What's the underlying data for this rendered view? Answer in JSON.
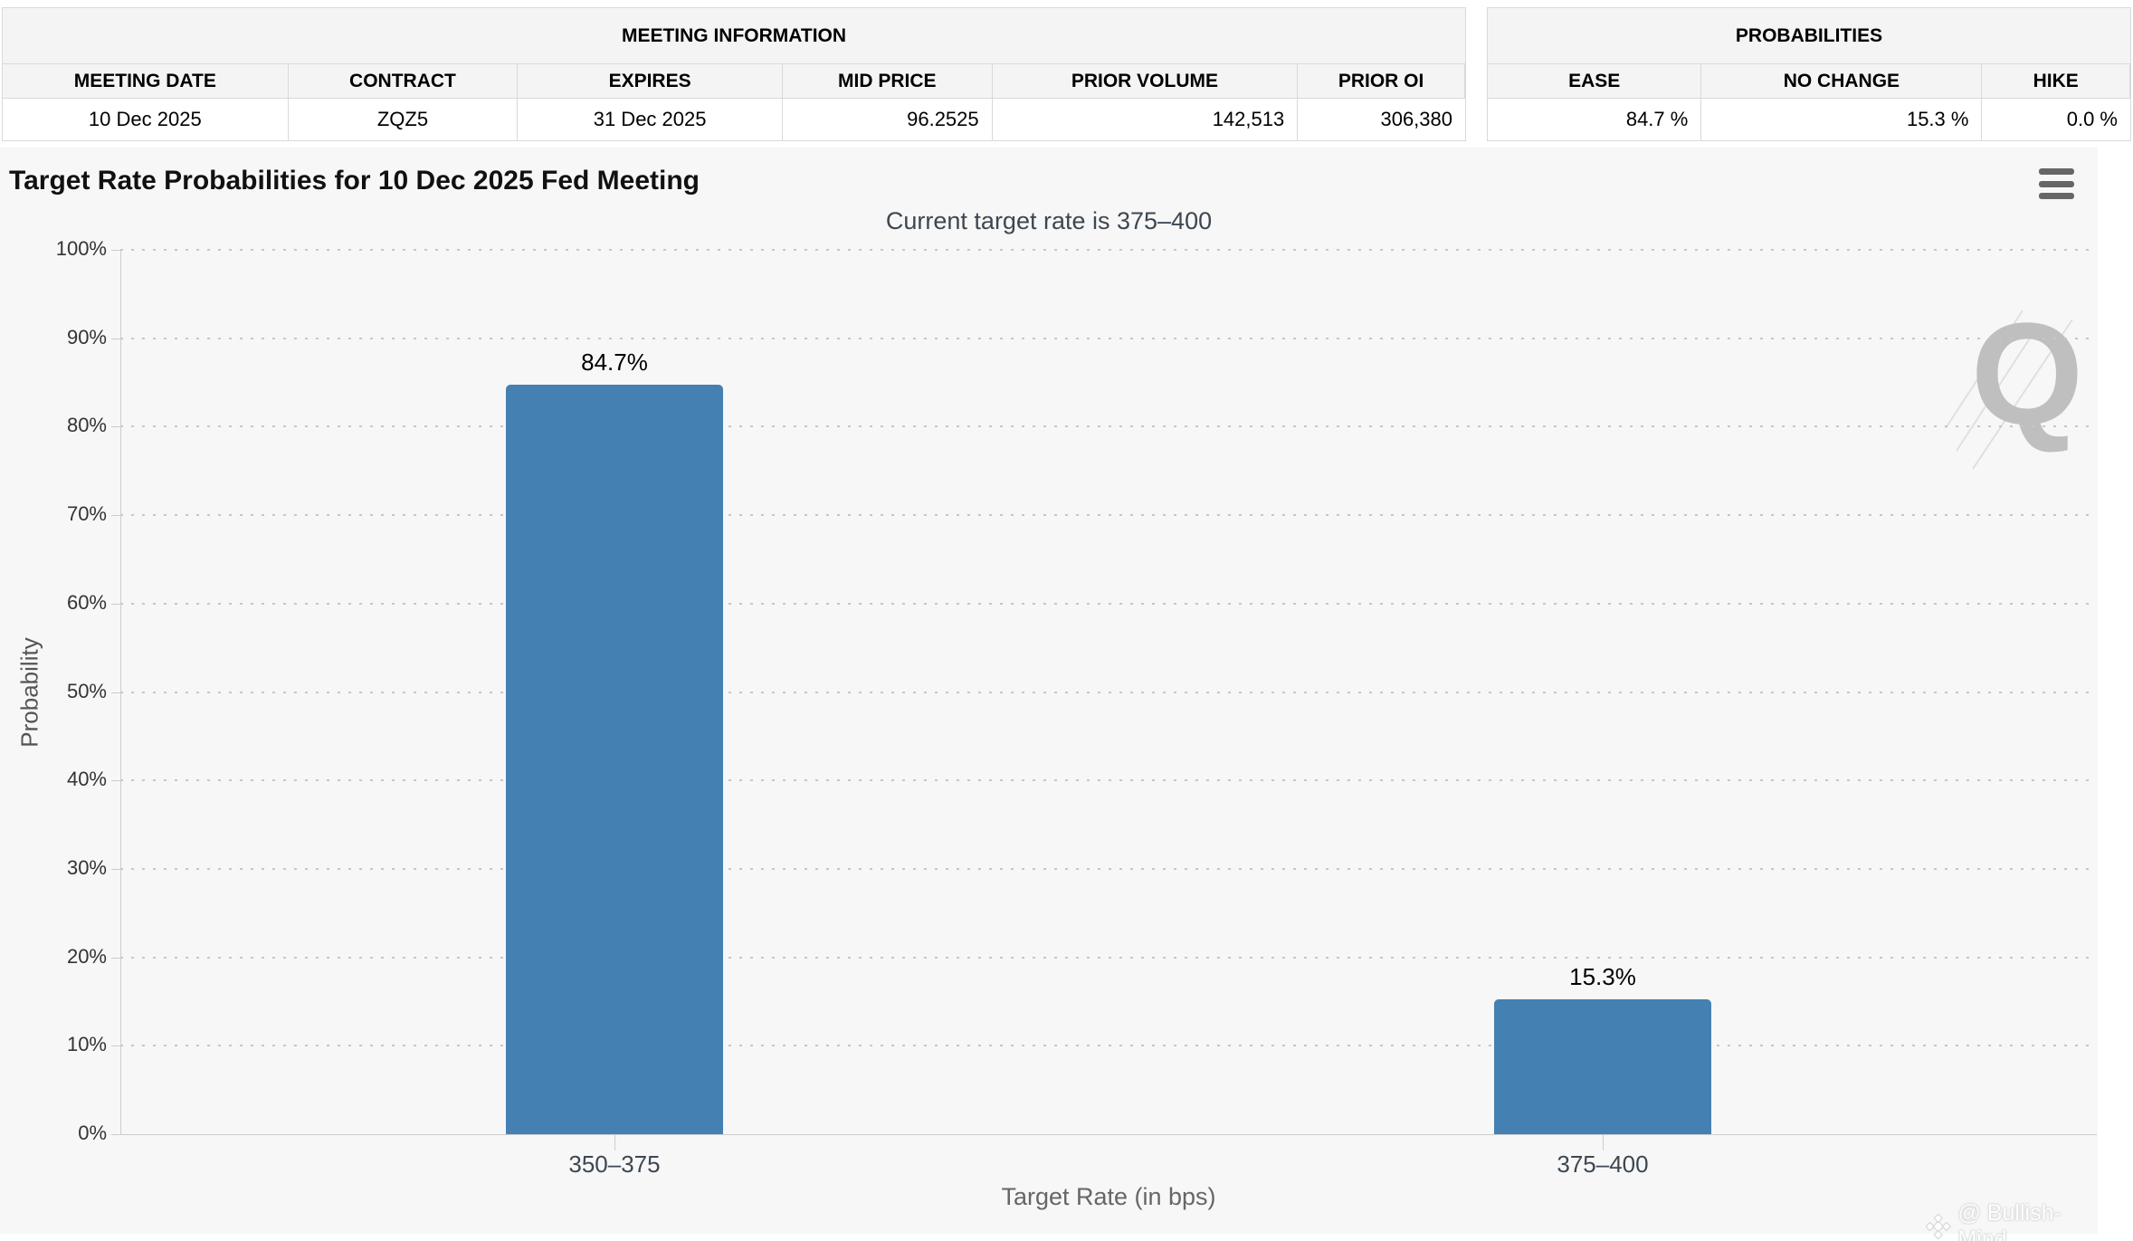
{
  "meeting_info": {
    "title": "MEETING INFORMATION",
    "columns": [
      "MEETING DATE",
      "CONTRACT",
      "EXPIRES",
      "MID PRICE",
      "PRIOR VOLUME",
      "PRIOR OI"
    ],
    "values": [
      "10 Dec 2025",
      "ZQZ5",
      "31 Dec 2025",
      "96.2525",
      "142,513",
      "306,380"
    ]
  },
  "probabilities": {
    "title": "PROBABILITIES",
    "columns": [
      "EASE",
      "NO CHANGE",
      "HIKE"
    ],
    "values": [
      "84.7 %",
      "15.3 %",
      "0.0 %"
    ]
  },
  "chart_data": {
    "type": "bar",
    "title": "Target Rate Probabilities for 10 Dec 2025 Fed Meeting",
    "subtitle": "Current target rate is 375–400",
    "categories": [
      "350–375",
      "375–400"
    ],
    "values": [
      84.7,
      15.3
    ],
    "data_labels": [
      "84.7%",
      "15.3%"
    ],
    "xlabel": "Target Rate (in bps)",
    "ylabel": "Probability",
    "ylim": [
      0,
      100
    ],
    "ytick_step": 10,
    "ytick_suffix": "%",
    "grid": "dotted-horizontal",
    "legend": "none",
    "bar_color": "#4480b2",
    "background_color": "#f7f7f7",
    "grid_color": "#c6c6c6",
    "axis_color": "#cccccc"
  },
  "icons": {
    "menu": "hamburger-icon",
    "logo_letter": "Q",
    "credit_logo": "diamond-logo-icon"
  },
  "watermark_credit": "@ Bullish-Mind"
}
